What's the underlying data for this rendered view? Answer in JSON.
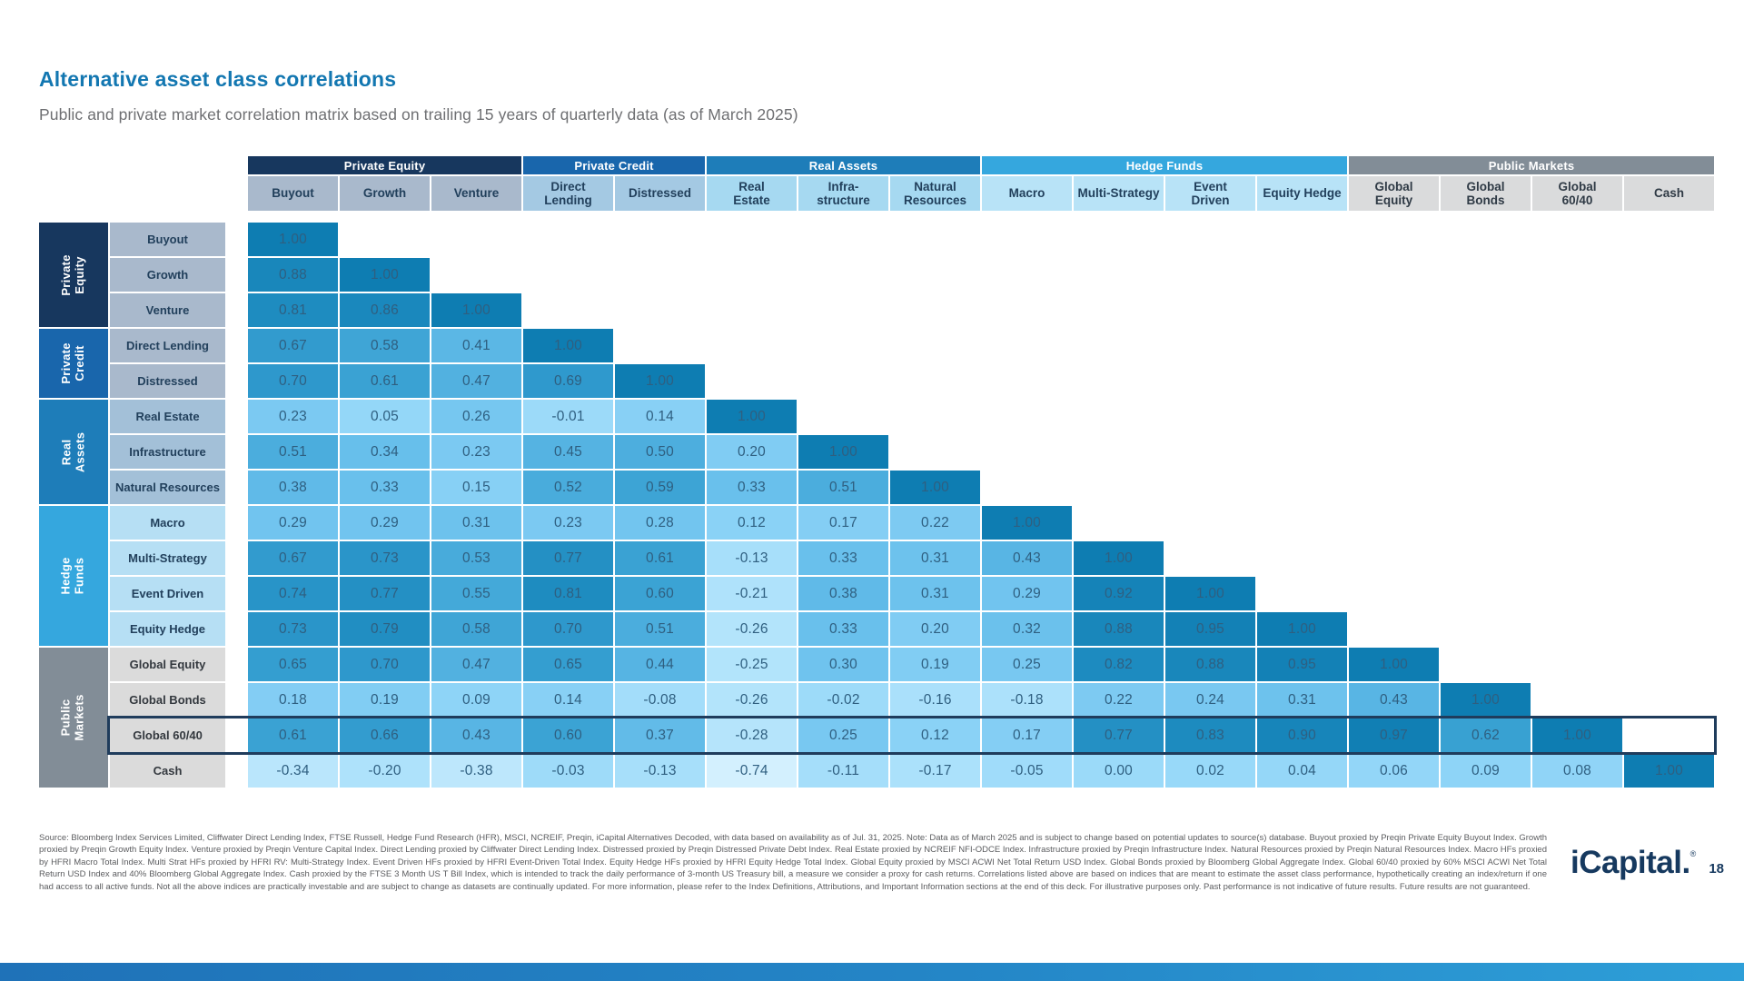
{
  "slide": {
    "footnote": "Source: Bloomberg Index Services Limited, Cliffwater Direct Lending Index, FTSE Russell, Hedge Fund Research (HFR), MSCI, NCREIF, Preqin, iCapital Alternatives Decoded, with data based on availability as of Jul. 31, 2025. Note: Data as of March 2025 and is subject to change based on potential updates to source(s) database. Buyout proxied by Preqin Private Equity Buyout Index. Growth proxied by Preqin Growth Equity Index. Venture proxied by Preqin Venture Capital Index. Direct Lending proxied by Cliffwater Direct Lending Index. Distressed proxied by Preqin Distressed Private Debt Index. Real Estate proxied by NCREIF NFI-ODCE Index. Infrastructure proxied by Preqin Infrastructure Index. Natural Resources proxied by Preqin Natural Resources Index. Macro HFs proxied by HFRI Macro Total Index. Multi Strat HFs proxied by HFRI RV: Multi-Strategy Index. Event Driven HFs proxied by HFRI Event-Driven Total Index. Equity Hedge HFs proxied by HFRI Equity Hedge Total Index. Global Equity proxied by MSCI ACWI Net Total Return USD Index. Global Bonds proxied by Bloomberg Global Aggregate Index. Global 60/40 proxied by 60% MSCI ACWI Net Total Return USD Index and 40% Bloomberg Global Aggregate Index. Cash proxied by the FTSE 3 Month US T Bill Index, which is intended to track the daily performance of 3-month US Treasury bill, a measure we consider a proxy for cash returns. Correlations listed above are based on indices that are meant to estimate the asset class performance, hypothetically creating an index/return if one had access to all active funds. Not all the above indices are practically investable and are subject to change as datasets are continually updated. For more information, please refer to the Index Definitions, Attributions, and Important Information sections at the end of this deck. For illustrative purposes only. Past performance is not indicative of future results. Future results are not guaranteed.",
    "logo_text": "iCapital.",
    "logo_reg": "®",
    "page_number": "18"
  },
  "chart_data": {
    "type": "heatmap",
    "title": "Alternative asset class correlations",
    "subtitle": "Public and private market correlation matrix based on trailing 15 years of quarterly data (as of March 2025)",
    "legend_position": "none",
    "grid": false,
    "value_range": [
      -1,
      1
    ],
    "groups": [
      {
        "name": "Private Equity",
        "name_lines": [
          "Private",
          "Equity"
        ],
        "header_color": "#17375E",
        "subheader_bg": "#A9B9CC",
        "label_bg": "#A9B9CC",
        "label_fg": "#22405C",
        "subheader_fg": "#22405C"
      },
      {
        "name": "Private Credit",
        "name_lines": [
          "Private",
          "Credit"
        ],
        "header_color": "#1966AC",
        "subheader_bg": "#A4C9E3",
        "label_bg": "#A9B9CC",
        "label_fg": "#22405C",
        "subheader_fg": "#22405C"
      },
      {
        "name": "Real Assets",
        "name_lines": [
          "Real",
          "Assets"
        ],
        "header_color": "#1E7DB9",
        "subheader_bg": "#A6D9F1",
        "label_bg": "#A3C0D8",
        "label_fg": "#22405C",
        "subheader_fg": "#22405C"
      },
      {
        "name": "Hedge Funds",
        "name_lines": [
          "Hedge",
          "Funds"
        ],
        "header_color": "#35A7DE",
        "subheader_bg": "#B8E3F7",
        "label_bg": "#B6DFF4",
        "label_fg": "#22405C",
        "subheader_fg": "#22405C"
      },
      {
        "name": "Public Markets",
        "name_lines": [
          "Public",
          "Markets"
        ],
        "header_color": "#828D97",
        "subheader_bg": "#DADBDC",
        "label_bg": "#DBDBDB",
        "label_fg": "#33383E",
        "subheader_fg": "#2F3A45"
      }
    ],
    "columns": [
      {
        "label": "Buyout",
        "lines": [
          "Buyout"
        ],
        "group": 0
      },
      {
        "label": "Growth",
        "lines": [
          "Growth"
        ],
        "group": 0
      },
      {
        "label": "Venture",
        "lines": [
          "Venture"
        ],
        "group": 0
      },
      {
        "label": "Direct Lending",
        "lines": [
          "Direct",
          "Lending"
        ],
        "group": 1
      },
      {
        "label": "Distressed",
        "lines": [
          "Distressed"
        ],
        "group": 1
      },
      {
        "label": "Real Estate",
        "lines": [
          "Real",
          "Estate"
        ],
        "group": 2
      },
      {
        "label": "Infrastructure",
        "lines": [
          "Infra-",
          "structure"
        ],
        "group": 2
      },
      {
        "label": "Natural Resources",
        "lines": [
          "Natural",
          "Resources"
        ],
        "group": 2
      },
      {
        "label": "Macro",
        "lines": [
          "Macro"
        ],
        "group": 3
      },
      {
        "label": "Multi-Strategy",
        "lines": [
          "Multi-Strategy"
        ],
        "group": 3
      },
      {
        "label": "Event Driven",
        "lines": [
          "Event",
          "Driven"
        ],
        "group": 3
      },
      {
        "label": "Equity Hedge",
        "lines": [
          "Equity Hedge"
        ],
        "group": 3
      },
      {
        "label": "Global Equity",
        "lines": [
          "Global",
          "Equity"
        ],
        "group": 4
      },
      {
        "label": "Global Bonds",
        "lines": [
          "Global",
          "Bonds"
        ],
        "group": 4
      },
      {
        "label": "Global 60/40",
        "lines": [
          "Global",
          "60/40"
        ],
        "group": 4
      },
      {
        "label": "Cash",
        "lines": [
          "Cash"
        ],
        "group": 4
      }
    ],
    "rows": [
      {
        "label": "Buyout",
        "group": 0
      },
      {
        "label": "Growth",
        "group": 0
      },
      {
        "label": "Venture",
        "group": 0
      },
      {
        "label": "Direct Lending",
        "group": 1
      },
      {
        "label": "Distressed",
        "group": 1
      },
      {
        "label": "Real Estate",
        "group": 2
      },
      {
        "label": "Infrastructure",
        "group": 2
      },
      {
        "label": "Natural Resources",
        "group": 2
      },
      {
        "label": "Macro",
        "group": 3
      },
      {
        "label": "Multi-Strategy",
        "group": 3
      },
      {
        "label": "Event Driven",
        "group": 3
      },
      {
        "label": "Equity Hedge",
        "group": 3
      },
      {
        "label": "Global Equity",
        "group": 4
      },
      {
        "label": "Global Bonds",
        "group": 4
      },
      {
        "label": "Global 60/40",
        "group": 4
      },
      {
        "label": "Cash",
        "group": 4
      }
    ],
    "matrix": [
      [
        1.0
      ],
      [
        0.88,
        1.0
      ],
      [
        0.81,
        0.86,
        1.0
      ],
      [
        0.67,
        0.58,
        0.41,
        1.0
      ],
      [
        0.7,
        0.61,
        0.47,
        0.69,
        1.0
      ],
      [
        0.23,
        0.05,
        0.26,
        -0.01,
        0.14,
        1.0
      ],
      [
        0.51,
        0.34,
        0.23,
        0.45,
        0.5,
        0.2,
        1.0
      ],
      [
        0.38,
        0.33,
        0.15,
        0.52,
        0.59,
        0.33,
        0.51,
        1.0
      ],
      [
        0.29,
        0.29,
        0.31,
        0.23,
        0.28,
        0.12,
        0.17,
        0.22,
        1.0
      ],
      [
        0.67,
        0.73,
        0.53,
        0.77,
        0.61,
        -0.13,
        0.33,
        0.31,
        0.43,
        1.0
      ],
      [
        0.74,
        0.77,
        0.55,
        0.81,
        0.6,
        -0.21,
        0.38,
        0.31,
        0.29,
        0.92,
        1.0
      ],
      [
        0.73,
        0.79,
        0.58,
        0.7,
        0.51,
        -0.26,
        0.33,
        0.2,
        0.32,
        0.88,
        0.95,
        1.0
      ],
      [
        0.65,
        0.7,
        0.47,
        0.65,
        0.44,
        -0.25,
        0.3,
        0.19,
        0.25,
        0.82,
        0.88,
        0.95,
        1.0
      ],
      [
        0.18,
        0.19,
        0.09,
        0.14,
        -0.08,
        -0.26,
        -0.02,
        -0.16,
        -0.18,
        0.22,
        0.24,
        0.31,
        0.43,
        1.0
      ],
      [
        0.61,
        0.66,
        0.43,
        0.6,
        0.37,
        -0.28,
        0.25,
        0.12,
        0.17,
        0.77,
        0.83,
        0.9,
        0.97,
        0.62,
        1.0
      ],
      [
        -0.34,
        -0.2,
        -0.38,
        -0.03,
        -0.13,
        -0.74,
        -0.11,
        -0.17,
        -0.05,
        0.0,
        0.02,
        0.04,
        0.06,
        0.09,
        0.08,
        1.0
      ]
    ],
    "highlight": {
      "row_label": "Global 60/40",
      "row_index": 14,
      "border_color": "#1F3C5C"
    },
    "color_scale": [
      {
        "v": -0.8,
        "c": "#D6F1FE"
      },
      {
        "v": -0.4,
        "c": "#BFE8FC"
      },
      {
        "v": -0.2,
        "c": "#AEE2FB"
      },
      {
        "v": 0.0,
        "c": "#9BDAF9"
      },
      {
        "v": 0.1,
        "c": "#8DD3F7"
      },
      {
        "v": 0.2,
        "c": "#80CCF3"
      },
      {
        "v": 0.3,
        "c": "#6FC3EE"
      },
      {
        "v": 0.4,
        "c": "#5CB8E6"
      },
      {
        "v": 0.5,
        "c": "#4DAEDE"
      },
      {
        "v": 0.6,
        "c": "#3BA3D4"
      },
      {
        "v": 0.7,
        "c": "#2E98CC"
      },
      {
        "v": 0.8,
        "c": "#1F8DC1"
      },
      {
        "v": 0.9,
        "c": "#1785BA"
      },
      {
        "v": 1.0,
        "c": "#0E7DB2"
      }
    ],
    "accent_colors": {
      "title_blue": "#1377B1",
      "bottom_bar_blue": "#2486C7",
      "logo_navy": "#16395F"
    }
  }
}
